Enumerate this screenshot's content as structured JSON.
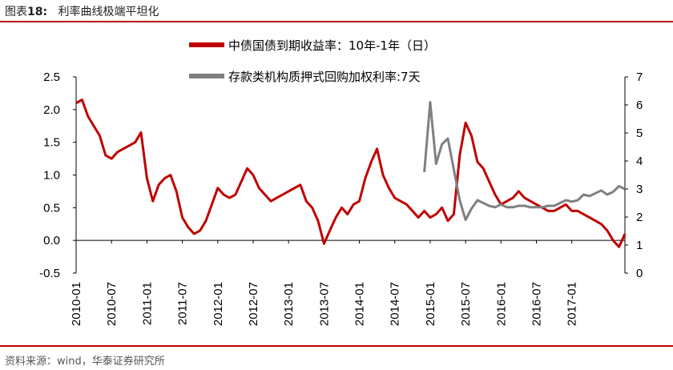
{
  "header": {
    "label": "图表",
    "number": "18:",
    "title": "利率曲线极端平坦化"
  },
  "source": "资料来源：wind，华泰证券研究所",
  "chart_data": {
    "type": "line",
    "x_ticks": [
      "2010-01",
      "2010-07",
      "2011-01",
      "2011-07",
      "2012-01",
      "2012-07",
      "2013-01",
      "2013-07",
      "2014-01",
      "2014-07",
      "2015-01",
      "2015-07",
      "2016-01",
      "2016-07",
      "2017-01"
    ],
    "y_left": {
      "ticks": [
        "2.5",
        "2.0",
        "1.5",
        "1.0",
        "0.5",
        "0.0",
        "-0.5"
      ],
      "range": [
        -0.5,
        2.5
      ]
    },
    "y_right": {
      "ticks": [
        "7",
        "6",
        "5",
        "4",
        "3",
        "2",
        "1",
        "0"
      ],
      "range": [
        0,
        7
      ]
    },
    "x_range": [
      "2010-01",
      "2017-10"
    ],
    "series": [
      {
        "name": "中债国债到期收益率：10年-1年（日）",
        "axis": "left",
        "color": "#c00000",
        "points": [
          [
            "2010-01",
            2.1
          ],
          [
            "2010-02",
            2.15
          ],
          [
            "2010-03",
            1.9
          ],
          [
            "2010-04",
            1.75
          ],
          [
            "2010-05",
            1.6
          ],
          [
            "2010-06",
            1.3
          ],
          [
            "2010-07",
            1.25
          ],
          [
            "2010-08",
            1.35
          ],
          [
            "2010-09",
            1.4
          ],
          [
            "2010-10",
            1.45
          ],
          [
            "2010-11",
            1.5
          ],
          [
            "2010-12",
            1.65
          ],
          [
            "2011-01",
            0.95
          ],
          [
            "2011-02",
            0.6
          ],
          [
            "2011-03",
            0.85
          ],
          [
            "2011-04",
            0.95
          ],
          [
            "2011-05",
            1.0
          ],
          [
            "2011-06",
            0.75
          ],
          [
            "2011-07",
            0.35
          ],
          [
            "2011-08",
            0.2
          ],
          [
            "2011-09",
            0.1
          ],
          [
            "2011-10",
            0.15
          ],
          [
            "2011-11",
            0.3
          ],
          [
            "2011-12",
            0.55
          ],
          [
            "2012-01",
            0.8
          ],
          [
            "2012-02",
            0.7
          ],
          [
            "2012-03",
            0.65
          ],
          [
            "2012-04",
            0.7
          ],
          [
            "2012-05",
            0.9
          ],
          [
            "2012-06",
            1.1
          ],
          [
            "2012-07",
            1.0
          ],
          [
            "2012-08",
            0.8
          ],
          [
            "2012-09",
            0.7
          ],
          [
            "2012-10",
            0.6
          ],
          [
            "2012-11",
            0.65
          ],
          [
            "2012-12",
            0.7
          ],
          [
            "2013-01",
            0.75
          ],
          [
            "2013-02",
            0.8
          ],
          [
            "2013-03",
            0.85
          ],
          [
            "2013-04",
            0.6
          ],
          [
            "2013-05",
            0.5
          ],
          [
            "2013-06",
            0.3
          ],
          [
            "2013-07",
            -0.05
          ],
          [
            "2013-08",
            0.15
          ],
          [
            "2013-09",
            0.35
          ],
          [
            "2013-10",
            0.5
          ],
          [
            "2013-11",
            0.4
          ],
          [
            "2013-12",
            0.55
          ],
          [
            "2014-01",
            0.6
          ],
          [
            "2014-02",
            0.95
          ],
          [
            "2014-03",
            1.2
          ],
          [
            "2014-04",
            1.4
          ],
          [
            "2014-05",
            1.0
          ],
          [
            "2014-06",
            0.8
          ],
          [
            "2014-07",
            0.65
          ],
          [
            "2014-08",
            0.6
          ],
          [
            "2014-09",
            0.55
          ],
          [
            "2014-10",
            0.45
          ],
          [
            "2014-11",
            0.35
          ],
          [
            "2014-12",
            0.45
          ],
          [
            "2015-01",
            0.35
          ],
          [
            "2015-02",
            0.4
          ],
          [
            "2015-03",
            0.5
          ],
          [
            "2015-04",
            0.3
          ],
          [
            "2015-05",
            0.4
          ],
          [
            "2015-06",
            1.3
          ],
          [
            "2015-07",
            1.8
          ],
          [
            "2015-08",
            1.6
          ],
          [
            "2015-09",
            1.2
          ],
          [
            "2015-10",
            1.1
          ],
          [
            "2015-11",
            0.9
          ],
          [
            "2015-12",
            0.7
          ],
          [
            "2016-01",
            0.55
          ],
          [
            "2016-02",
            0.6
          ],
          [
            "2016-03",
            0.65
          ],
          [
            "2016-04",
            0.75
          ],
          [
            "2016-05",
            0.65
          ],
          [
            "2016-06",
            0.6
          ],
          [
            "2016-07",
            0.55
          ],
          [
            "2016-08",
            0.5
          ],
          [
            "2016-09",
            0.45
          ],
          [
            "2016-10",
            0.45
          ],
          [
            "2016-11",
            0.5
          ],
          [
            "2016-12",
            0.55
          ],
          [
            "2017-01",
            0.45
          ],
          [
            "2017-02",
            0.45
          ],
          [
            "2017-03",
            0.4
          ],
          [
            "2017-04",
            0.35
          ],
          [
            "2017-05",
            0.3
          ],
          [
            "2017-06",
            0.25
          ],
          [
            "2017-07",
            0.15
          ],
          [
            "2017-08",
            0.0
          ],
          [
            "2017-09",
            -0.1
          ],
          [
            "2017-10",
            0.1
          ]
        ]
      },
      {
        "name": "存款类机构质押式回购加权利率:7天",
        "axis": "right",
        "color": "#808080",
        "points": [
          [
            "2014-12",
            3.6
          ],
          [
            "2015-01",
            6.1
          ],
          [
            "2015-02",
            3.9
          ],
          [
            "2015-03",
            4.6
          ],
          [
            "2015-04",
            4.8
          ],
          [
            "2015-05",
            3.7
          ],
          [
            "2015-06",
            2.6
          ],
          [
            "2015-07",
            1.9
          ],
          [
            "2015-08",
            2.3
          ],
          [
            "2015-09",
            2.6
          ],
          [
            "2015-10",
            2.5
          ],
          [
            "2015-11",
            2.4
          ],
          [
            "2015-12",
            2.35
          ],
          [
            "2016-01",
            2.45
          ],
          [
            "2016-02",
            2.35
          ],
          [
            "2016-03",
            2.35
          ],
          [
            "2016-04",
            2.4
          ],
          [
            "2016-05",
            2.4
          ],
          [
            "2016-06",
            2.35
          ],
          [
            "2016-07",
            2.35
          ],
          [
            "2016-08",
            2.35
          ],
          [
            "2016-09",
            2.4
          ],
          [
            "2016-10",
            2.4
          ],
          [
            "2016-11",
            2.5
          ],
          [
            "2016-12",
            2.6
          ],
          [
            "2017-01",
            2.55
          ],
          [
            "2017-02",
            2.6
          ],
          [
            "2017-03",
            2.8
          ],
          [
            "2017-04",
            2.75
          ],
          [
            "2017-05",
            2.85
          ],
          [
            "2017-06",
            2.95
          ],
          [
            "2017-07",
            2.8
          ],
          [
            "2017-08",
            2.9
          ],
          [
            "2017-09",
            3.1
          ],
          [
            "2017-10",
            3.0
          ]
        ]
      }
    ]
  }
}
